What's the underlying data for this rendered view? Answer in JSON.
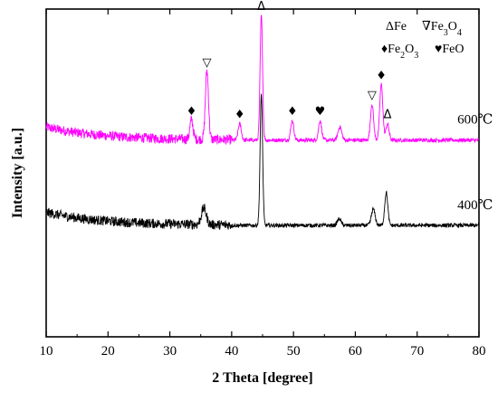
{
  "chart_data": {
    "type": "line",
    "xlabel": "2 Theta [degree]",
    "ylabel": "Intensity [a.u.]",
    "xlim": [
      10,
      80
    ],
    "x_ticks": [
      10,
      20,
      30,
      40,
      50,
      60,
      70,
      80
    ],
    "y_ticks_visible": false,
    "grid": false,
    "series": [
      {
        "name": "600℃",
        "color": "#ff00ff",
        "baseline": 0.6,
        "peaks": [
          {
            "x": 33.5,
            "h": 0.06,
            "w": 0.25
          },
          {
            "x": 36.0,
            "h": 0.21,
            "w": 0.25
          },
          {
            "x": 41.3,
            "h": 0.05,
            "w": 0.25
          },
          {
            "x": 44.8,
            "h": 0.38,
            "w": 0.2
          },
          {
            "x": 49.8,
            "h": 0.06,
            "w": 0.25
          },
          {
            "x": 54.3,
            "h": 0.06,
            "w": 0.25
          },
          {
            "x": 57.5,
            "h": 0.04,
            "w": 0.3
          },
          {
            "x": 62.7,
            "h": 0.11,
            "w": 0.25
          },
          {
            "x": 64.2,
            "h": 0.17,
            "w": 0.25
          },
          {
            "x": 65.2,
            "h": 0.05,
            "w": 0.25
          }
        ]
      },
      {
        "name": "400℃",
        "color": "#000000",
        "baseline": 0.34,
        "peaks": [
          {
            "x": 35.5,
            "h": 0.05,
            "w": 0.4
          },
          {
            "x": 44.8,
            "h": 0.4,
            "w": 0.2
          },
          {
            "x": 57.4,
            "h": 0.02,
            "w": 0.3
          },
          {
            "x": 62.9,
            "h": 0.05,
            "w": 0.3
          },
          {
            "x": 65.0,
            "h": 0.1,
            "w": 0.25
          }
        ]
      }
    ],
    "series_labels": [
      {
        "text": "600℃",
        "series": 0
      },
      {
        "text": "400℃",
        "series": 1
      }
    ],
    "peak_markers": [
      {
        "symbol": "♦",
        "x": 33.5,
        "series": 0
      },
      {
        "symbol": "▽",
        "x": 36.0,
        "series": 0
      },
      {
        "symbol": "♦",
        "x": 41.3,
        "series": 0
      },
      {
        "symbol": "Δ",
        "x": 44.8,
        "series": 0
      },
      {
        "symbol": "♦",
        "x": 49.8,
        "series": 0
      },
      {
        "symbol": "♥",
        "x": 54.3,
        "series": 0
      },
      {
        "symbol": "▽",
        "x": 62.7,
        "series": 0
      },
      {
        "symbol": "♦",
        "x": 64.2,
        "series": 0
      },
      {
        "symbol": "Δ",
        "x": 65.2,
        "series": 0
      }
    ],
    "legend": {
      "placement": "top-right",
      "entries": [
        {
          "symbol": "Δ",
          "label": "Fe"
        },
        {
          "symbol": "∇",
          "label": "Fe3O4"
        },
        {
          "symbol": "♦",
          "label": "Fe2O3"
        },
        {
          "symbol": "♥",
          "label": "FeO"
        }
      ]
    }
  }
}
